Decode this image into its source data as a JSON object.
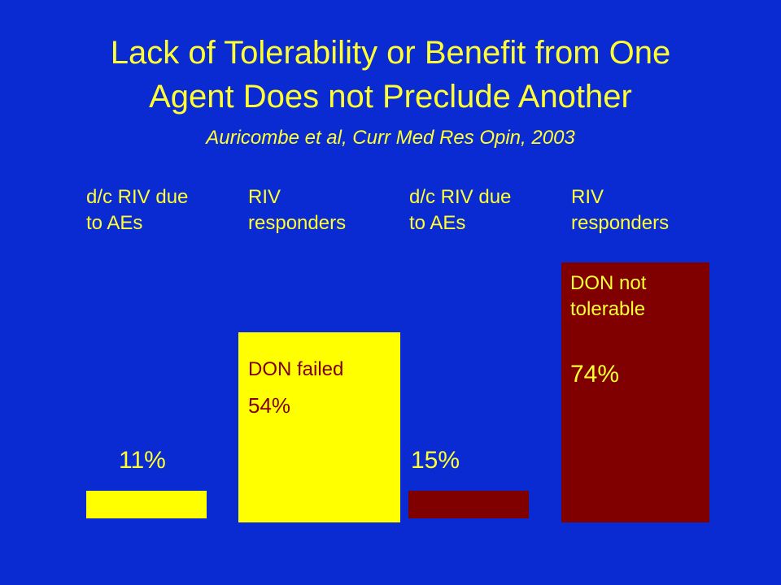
{
  "title_line1": "Lack of Tolerability or Benefit from One",
  "title_line2": "Agent Does not Preclude Another",
  "subtitle": "Auricombe et al, Curr Med Res Opin, 2003",
  "colors": {
    "background": "#0a2ad2",
    "yellow": "#ffff00",
    "maroon": "#800000",
    "text_yellow": "#ffff33"
  },
  "chart_data": {
    "type": "bar",
    "categories": [
      "d/c RIV due to AEs",
      "RIV responders",
      "d/c RIV due to AEs",
      "RIV responders"
    ],
    "values": [
      11,
      54,
      15,
      74
    ],
    "value_labels": [
      "11%",
      "54%",
      "15%",
      "74%"
    ],
    "bar_labels": [
      "",
      "DON failed",
      "",
      "DON not tolerable"
    ],
    "bar_colors": [
      "#ffff00",
      "#ffff00",
      "#800000",
      "#800000"
    ],
    "ylim": [
      0,
      80
    ]
  },
  "headers": [
    {
      "line1": "d/c RIV due",
      "line2": "to AEs"
    },
    {
      "line1": "RIV",
      "line2": "responders"
    },
    {
      "line1": "d/c RIV due",
      "line2": "to AEs"
    },
    {
      "line1": "RIV",
      "line2": "responders"
    }
  ],
  "bars": [
    {
      "value_text": "11%",
      "label": ""
    },
    {
      "value_text": "54%",
      "label": "DON failed"
    },
    {
      "value_text": "15%",
      "label": ""
    },
    {
      "value_text": "74%",
      "label_line1": "DON not",
      "label_line2": "tolerable"
    }
  ]
}
